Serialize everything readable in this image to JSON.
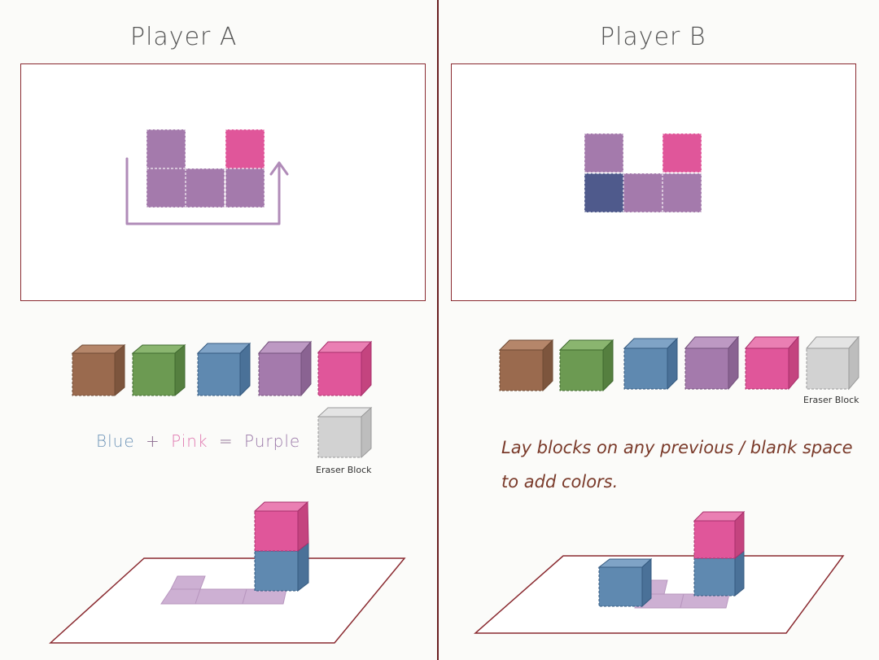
{
  "panels": {
    "a": {
      "title": "Player A"
    },
    "b": {
      "title": "Player B"
    }
  },
  "palette_colors": {
    "brown": "#9a6a4e",
    "green": "#6c9a52",
    "blue": "#5f89b0",
    "purple": "#a47aac",
    "pink": "#e0569a",
    "eraser": "#d2d2d2",
    "dark_blue": "#4f5a8c"
  },
  "eraser_label": "Eraser Block",
  "equation": {
    "blue": "Blue",
    "plus": "+",
    "pink": "Pink",
    "equals": "=",
    "purple": "Purple"
  },
  "instruction": {
    "line1": "Lay blocks on any previous / blank space",
    "line2": "to add colors."
  }
}
